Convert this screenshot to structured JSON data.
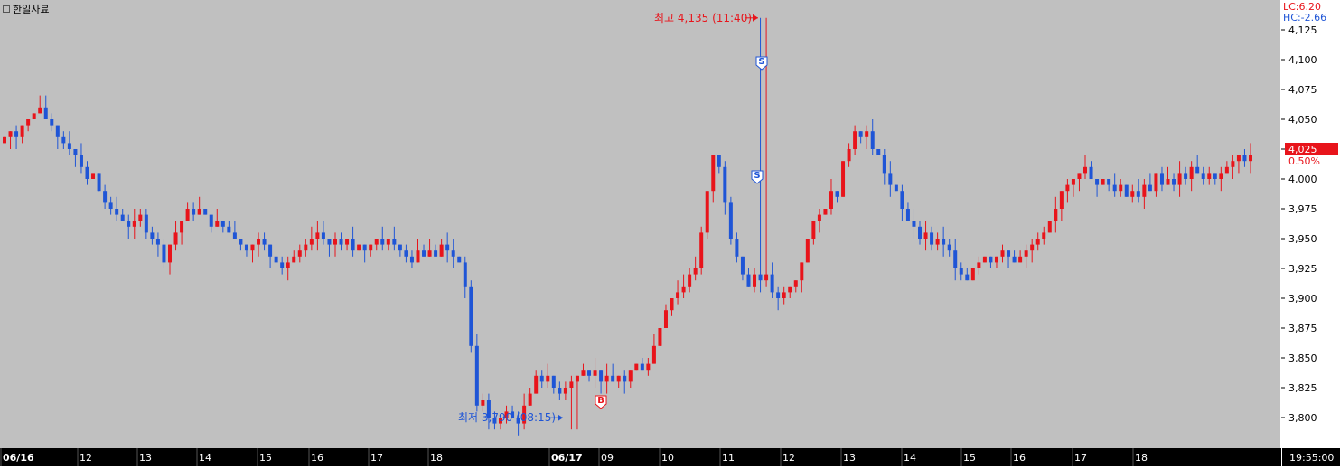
{
  "instrument": {
    "name": "한일사료"
  },
  "indicator": {
    "lc": "LC:6.20",
    "hc": "HC:-2.66"
  },
  "current": {
    "price": "4,025",
    "change": "0.50%"
  },
  "annotations": {
    "high_label": "최고 4,135 (11:40)",
    "low_label": "최저 3,790 (08:15)",
    "buy_marker": "B",
    "sell_marker": "S"
  },
  "clock": "19:55:00",
  "colors": {
    "up": "#e8141b",
    "down": "#1f55d6",
    "background": "#c0c0c0",
    "price_box": "#e8141b"
  },
  "chart_data": {
    "type": "candlestick",
    "title": "",
    "ylim": [
      3775,
      4150
    ],
    "y_ticks": [
      "4,125",
      "4,100",
      "4,075",
      "4,050",
      "4,025",
      "4,000",
      "3,975",
      "3,950",
      "3,925",
      "3,900",
      "3,875",
      "3,850",
      "3,825",
      "3,800"
    ],
    "y_tick_values": [
      4125,
      4100,
      4075,
      4050,
      4025,
      4000,
      3975,
      3950,
      3925,
      3900,
      3875,
      3850,
      3825,
      3800
    ],
    "x_labels": [
      "06/16",
      "12",
      "13",
      "14",
      "15",
      "16",
      "17",
      "18",
      "06/17",
      "09",
      "10",
      "11",
      "12",
      "13",
      "14",
      "15",
      "16",
      "17",
      "18"
    ],
    "x_label_bold": [
      true,
      false,
      false,
      false,
      false,
      false,
      false,
      false,
      true,
      false,
      false,
      false,
      false,
      false,
      false,
      false,
      false,
      false,
      false
    ],
    "high": {
      "value": 4135,
      "time": "11:40"
    },
    "low": {
      "value": 3790,
      "time": "08:15"
    },
    "last": 4025,
    "key_points": [
      4030,
      4040,
      4060,
      4045,
      4030,
      4010,
      3990,
      3970,
      3960,
      3960,
      3935,
      3960,
      3975,
      3965,
      3960,
      3950,
      3945,
      3935,
      3930,
      3940,
      3950,
      3945,
      3940,
      3945,
      3950,
      3945,
      3940,
      3940,
      3940,
      3935,
      3810,
      3800,
      3795,
      3805,
      3840,
      3820,
      3835,
      3840,
      3830,
      3830,
      3840,
      3850,
      3900,
      3910,
      3935,
      4030,
      3960,
      3910,
      3920,
      3900,
      3910,
      3950,
      3980,
      4000,
      4050,
      4030,
      4000,
      3970,
      3955,
      3945,
      3935,
      3925,
      3935,
      3930,
      3935,
      3940,
      3950,
      3990,
      4010,
      4000,
      3995,
      3990,
      3995,
      4000,
      3998,
      4005,
      4000,
      4003,
      4010,
      4025
    ]
  }
}
